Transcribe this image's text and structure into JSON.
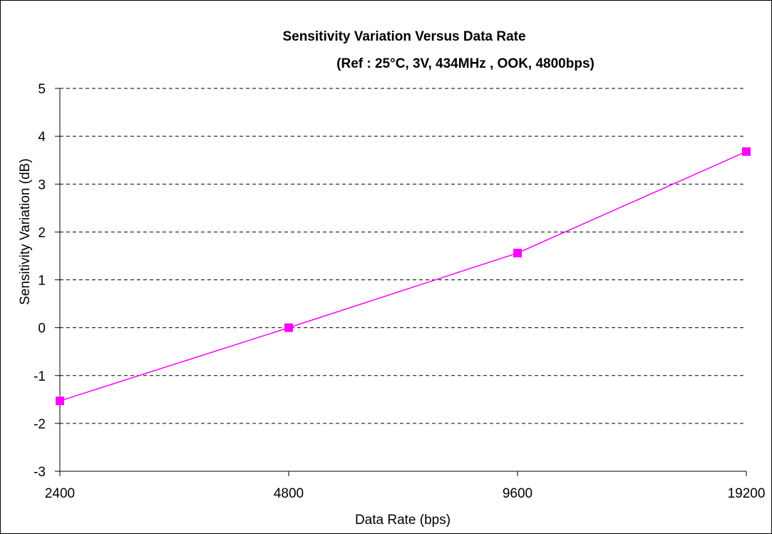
{
  "chart_data": {
    "type": "line",
    "title": "Sensitivity Variation Versus Data Rate",
    "subtitle": "(Ref : 25°C, 3V, 434MHz , OOK, 4800bps)",
    "xlabel": "Data Rate (bps)",
    "ylabel": "Sensitivity Variation (dB)",
    "categories": [
      "2400",
      "4800",
      "9600",
      "19200"
    ],
    "series": [
      {
        "values": [
          -1.53,
          0.0,
          1.56,
          3.68
        ]
      }
    ],
    "ylim": [
      -3,
      5
    ],
    "yticks": [
      "5",
      "4",
      "3",
      "2",
      "1",
      "0",
      "-1",
      "-2",
      "-3"
    ],
    "grid": "horizontal dashed",
    "legend": "none",
    "colors": {
      "series": "#ff00ff",
      "grid": "#000000",
      "axis": "#000000"
    }
  }
}
